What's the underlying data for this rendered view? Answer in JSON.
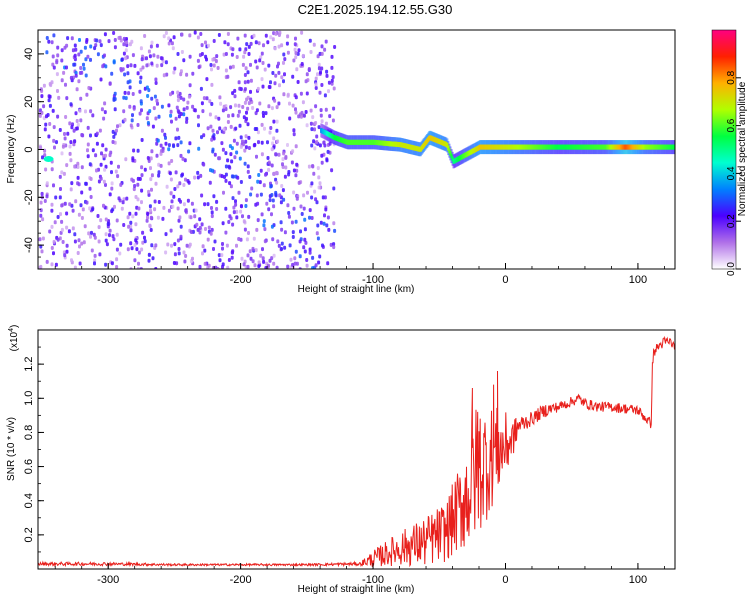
{
  "title": "C2E1.2025.194.12.55.G30",
  "chart_data": [
    {
      "type": "heatmap",
      "xlabel": "Height of straight line (km)",
      "ylabel": "Frequency (Hz)",
      "xlim": [
        -353,
        128
      ],
      "ylim": [
        -50,
        50
      ],
      "xticks": [
        -300,
        -200,
        -100,
        0,
        100
      ],
      "yticks": [
        -40,
        -20,
        0,
        20,
        40
      ],
      "xtick_labels": [
        "-300",
        "-200",
        "-100",
        "0",
        "100"
      ],
      "ytick_labels": [
        "-40",
        "-20",
        "0",
        "20",
        "40"
      ],
      "colorbar": {
        "label": "Normalized spectral amplitude",
        "range": [
          0,
          1
        ],
        "ticks": [
          0,
          0.2,
          0.4,
          0.6,
          0.8
        ],
        "tick_labels": [
          "0.0",
          "0.2",
          "0.4",
          "0.6",
          "0.8"
        ],
        "colormap": [
          "#ffffff",
          "#b070e8",
          "#4b00ff",
          "#0080ff",
          "#00ffd0",
          "#00ff40",
          "#b0ff00",
          "#ffb000",
          "#ff2000",
          "#ff0080"
        ]
      },
      "noise_region": {
        "x": [
          -353,
          -130
        ],
        "frequency_range": [
          -50,
          50
        ],
        "amplitude_range": [
          0.05,
          0.25
        ]
      },
      "signal_ridge": [
        {
          "x": -140,
          "frequency": 8,
          "amplitude": 0.35
        },
        {
          "x": -130,
          "frequency": 5,
          "amplitude": 0.55
        },
        {
          "x": -120,
          "frequency": 3,
          "amplitude": 0.6
        },
        {
          "x": -100,
          "frequency": 3,
          "amplitude": 0.6
        },
        {
          "x": -80,
          "frequency": 2,
          "amplitude": 0.7
        },
        {
          "x": -65,
          "frequency": 0,
          "amplitude": 0.7
        },
        {
          "x": -58,
          "frequency": 5,
          "amplitude": 0.75
        },
        {
          "x": -45,
          "frequency": 2,
          "amplitude": 0.7
        },
        {
          "x": -40,
          "frequency": -5,
          "amplitude": 0.5
        },
        {
          "x": -20,
          "frequency": 1,
          "amplitude": 0.75
        },
        {
          "x": 0,
          "frequency": 1,
          "amplitude": 0.7
        },
        {
          "x": 40,
          "frequency": 1,
          "amplitude": 0.55
        },
        {
          "x": 75,
          "frequency": 1,
          "amplitude": 0.6
        },
        {
          "x": 90,
          "frequency": 1,
          "amplitude": 0.85
        },
        {
          "x": 105,
          "frequency": 1,
          "amplitude": 0.65
        },
        {
          "x": 128,
          "frequency": 1,
          "amplitude": 0.55
        }
      ],
      "isolated_blob": {
        "x": -345,
        "frequency": -4,
        "amplitude": 0.45
      }
    },
    {
      "type": "line",
      "xlabel": "Height of straight line (km)",
      "ylabel": "SNR (10 * v/v)",
      "y_multiplier": "(x10",
      "y_multiplier_exp": "4",
      "xlim": [
        -353,
        128
      ],
      "ylim": [
        0,
        1.4
      ],
      "xticks": [
        -300,
        -200,
        -100,
        0,
        100
      ],
      "yticks": [
        0.2,
        0.4,
        0.6,
        0.8,
        1.0,
        1.2
      ],
      "xtick_labels": [
        "-300",
        "-200",
        "-100",
        "0",
        "100"
      ],
      "ytick_labels": [
        "0.2",
        "0.4",
        "0.6",
        "0.8",
        "1.0",
        "1.2"
      ],
      "line_color": "#e8201c",
      "series": [
        {
          "name": "",
          "x": [
            -353,
            -300,
            -250,
            -200,
            -150,
            -110,
            -100,
            -80,
            -60,
            -45,
            -35,
            -28,
            -24,
            -20,
            -15,
            -10,
            -5,
            0,
            5,
            10,
            20,
            30,
            40,
            50,
            55,
            60,
            70,
            80,
            90,
            100,
            110,
            111,
            112,
            115,
            120,
            125,
            128
          ],
          "mean": [
            0.03,
            0.03,
            0.025,
            0.025,
            0.025,
            0.03,
            0.06,
            0.12,
            0.16,
            0.22,
            0.35,
            0.45,
            0.55,
            0.6,
            0.62,
            0.66,
            0.7,
            0.72,
            0.76,
            0.84,
            0.88,
            0.93,
            0.95,
            0.98,
            1.0,
            0.97,
            0.95,
            0.95,
            0.94,
            0.93,
            0.85,
            1.2,
            1.27,
            1.3,
            1.33,
            1.33,
            1.29
          ],
          "amp": [
            0.01,
            0.01,
            0.006,
            0.006,
            0.006,
            0.01,
            0.05,
            0.1,
            0.15,
            0.18,
            0.25,
            0.35,
            0.4,
            0.4,
            0.35,
            0.3,
            0.25,
            0.2,
            0.12,
            0.06,
            0.04,
            0.04,
            0.03,
            0.03,
            0.03,
            0.03,
            0.03,
            0.03,
            0.03,
            0.03,
            0.03,
            0.03,
            0.03,
            0.03,
            0.03,
            0.03,
            0.03
          ],
          "spikes": [
            {
              "x": -25,
              "y": 1.06
            },
            {
              "x": -21,
              "y": 0.92
            },
            {
              "x": -6,
              "y": 1.16
            },
            {
              "x": -9,
              "y": 1.08
            },
            {
              "x": -3,
              "y": 0.62
            }
          ]
        }
      ]
    }
  ]
}
